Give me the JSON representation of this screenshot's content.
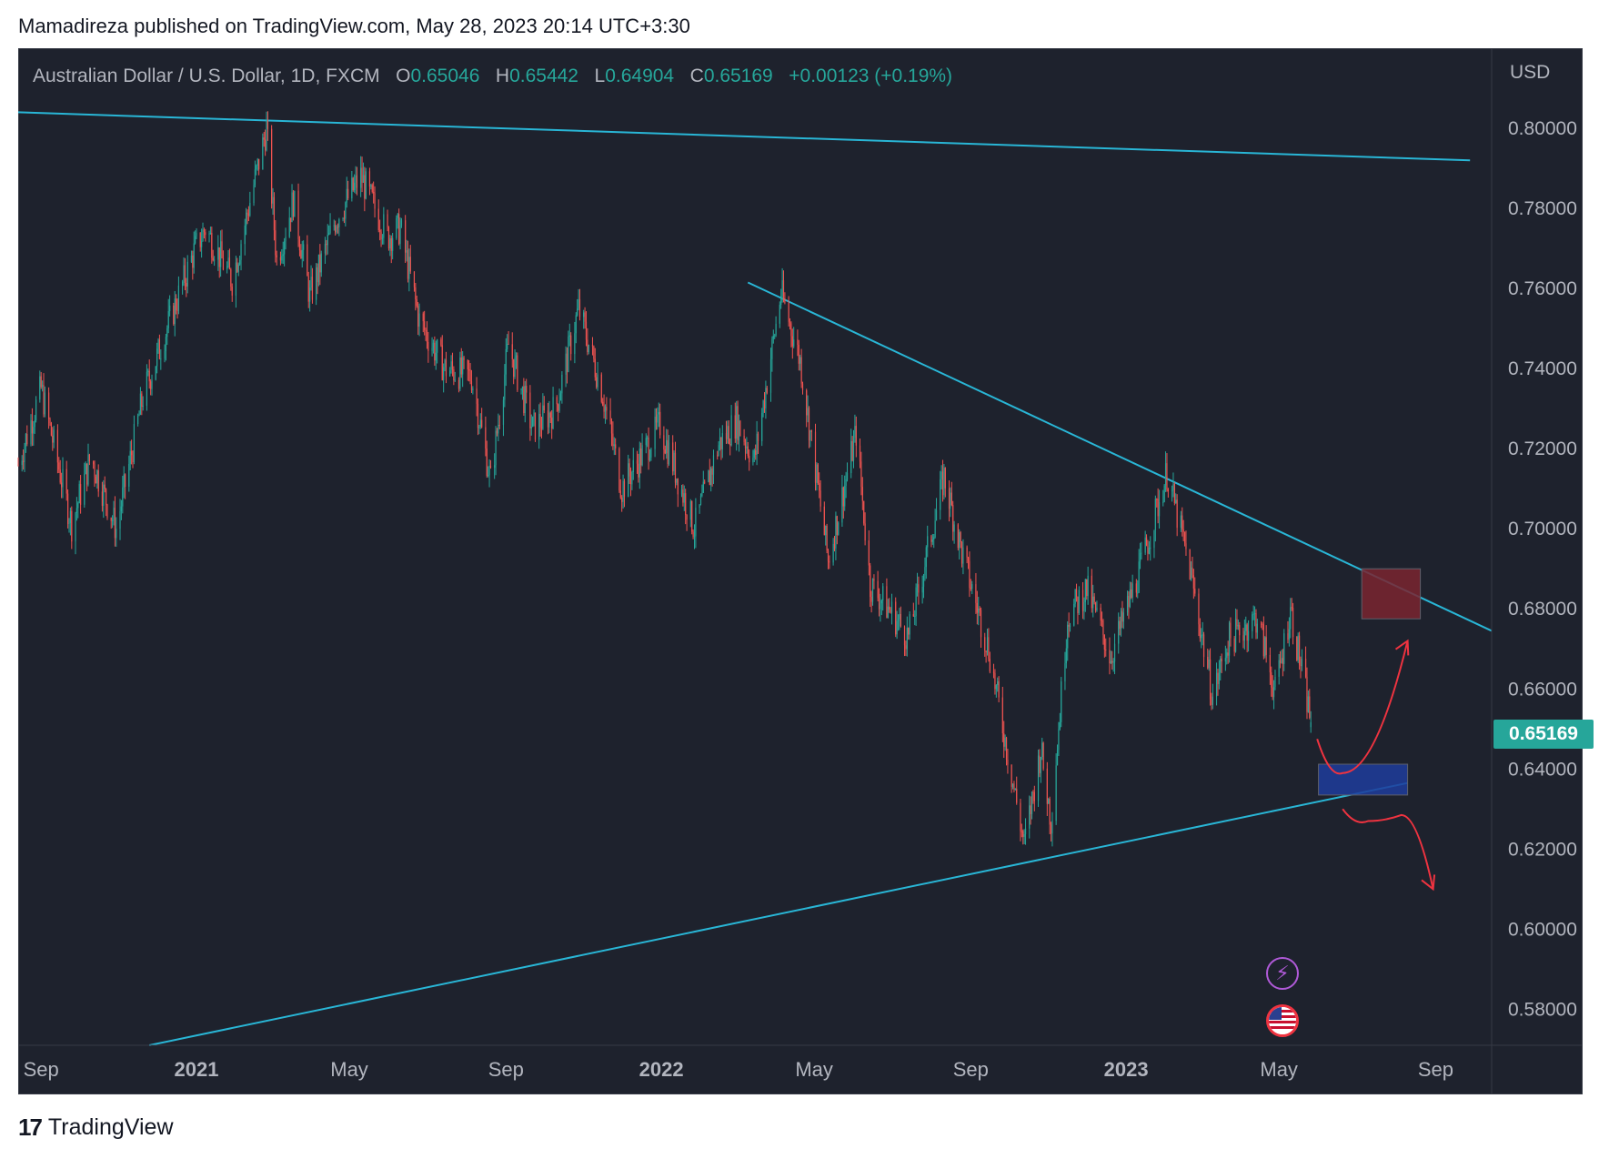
{
  "header": {
    "publisher": "Mamadireza published on TradingView.com, May 28, 2023 20:14 UTC+3:30"
  },
  "legend": {
    "symbol": "Australian Dollar / U.S. Dollar, 1D, FXCM",
    "o_label": "O",
    "o_value": "0.65046",
    "h_label": "H",
    "h_value": "0.65442",
    "l_label": "L",
    "l_value": "0.64904",
    "c_label": "C",
    "c_value": "0.65169",
    "change": "+0.00123 (+0.19%)"
  },
  "axis": {
    "currency": "USD"
  },
  "last_price": "0.65169",
  "footer": {
    "brand": "TradingView",
    "logo_mark": "17"
  },
  "icons": {
    "event_bolt": "lightning-icon",
    "event_flag": "us-flag-icon"
  },
  "colors": {
    "background": "#1e222d",
    "up": "#26a69a",
    "down": "#ef5350",
    "trendline": "#29b6d6",
    "sell_zone": "#7a2430",
    "buy_zone": "#1e3c9c",
    "arrow": "#ef3340"
  },
  "chart_data": {
    "type": "candlestick",
    "symbol": "AUDUSD",
    "timeframe": "1D",
    "x_ticks": [
      "Sep",
      "2021",
      "May",
      "Sep",
      "2022",
      "May",
      "Sep",
      "2023",
      "May",
      "Sep"
    ],
    "y_ticks": [
      "0.80000",
      "0.78000",
      "0.76000",
      "0.74000",
      "0.72000",
      "0.70000",
      "0.68000",
      "0.66000",
      "0.64000",
      "0.62000",
      "0.60000",
      "0.58000"
    ],
    "ylim": [
      0.571,
      0.82
    ],
    "xlim": [
      "2020-08-14",
      "2023-10-15"
    ],
    "path": [
      [
        "2020-08-14",
        0.716
      ],
      [
        "2020-09-01",
        0.735
      ],
      [
        "2020-09-25",
        0.701
      ],
      [
        "2020-10-10",
        0.718
      ],
      [
        "2020-10-30",
        0.7
      ],
      [
        "2020-11-20",
        0.733
      ],
      [
        "2020-12-31",
        0.77
      ],
      [
        "2021-01-08",
        0.775
      ],
      [
        "2021-01-29",
        0.762
      ],
      [
        "2021-02-25",
        0.8
      ],
      [
        "2021-03-05",
        0.767
      ],
      [
        "2021-03-18",
        0.782
      ],
      [
        "2021-03-31",
        0.758
      ],
      [
        "2021-04-20",
        0.777
      ],
      [
        "2021-05-10",
        0.788
      ],
      [
        "2021-05-31",
        0.773
      ],
      [
        "2021-06-10",
        0.775
      ],
      [
        "2021-06-25",
        0.752
      ],
      [
        "2021-07-15",
        0.74
      ],
      [
        "2021-08-05",
        0.738
      ],
      [
        "2021-08-20",
        0.712
      ],
      [
        "2021-09-03",
        0.746
      ],
      [
        "2021-09-22",
        0.725
      ],
      [
        "2021-10-10",
        0.73
      ],
      [
        "2021-10-28",
        0.755
      ],
      [
        "2021-11-15",
        0.735
      ],
      [
        "2021-12-01",
        0.71
      ],
      [
        "2021-12-31",
        0.726
      ],
      [
        "2022-01-27",
        0.7
      ],
      [
        "2022-02-15",
        0.721
      ],
      [
        "2022-03-01",
        0.727
      ],
      [
        "2022-03-15",
        0.717
      ],
      [
        "2022-04-05",
        0.759
      ],
      [
        "2022-04-20",
        0.742
      ],
      [
        "2022-05-12",
        0.692
      ],
      [
        "2022-06-03",
        0.724
      ],
      [
        "2022-06-14",
        0.686
      ],
      [
        "2022-07-01",
        0.679
      ],
      [
        "2022-07-14",
        0.673
      ],
      [
        "2022-08-11",
        0.713
      ],
      [
        "2022-08-25",
        0.694
      ],
      [
        "2022-09-15",
        0.67
      ],
      [
        "2022-10-13",
        0.621
      ],
      [
        "2022-10-26",
        0.645
      ],
      [
        "2022-11-03",
        0.627
      ],
      [
        "2022-11-16",
        0.678
      ],
      [
        "2022-12-01",
        0.685
      ],
      [
        "2022-12-20",
        0.668
      ],
      [
        "2023-01-12",
        0.69
      ],
      [
        "2023-02-02",
        0.714
      ],
      [
        "2023-02-20",
        0.69
      ],
      [
        "2023-03-10",
        0.658
      ],
      [
        "2023-03-22",
        0.672
      ],
      [
        "2023-04-14",
        0.678
      ],
      [
        "2023-04-28",
        0.659
      ],
      [
        "2023-05-10",
        0.68
      ],
      [
        "2023-05-26",
        0.652
      ]
    ],
    "last": {
      "open": 0.65046,
      "high": 0.65442,
      "low": 0.64904,
      "close": 0.65169
    },
    "trendlines": [
      {
        "from": [
          "2020-08-14",
          0.804
        ],
        "to": [
          "2023-09-28",
          0.792
        ]
      },
      {
        "from": [
          "2022-03-10",
          0.7615
        ],
        "to": [
          "2023-10-15",
          0.6745
        ]
      },
      {
        "from": [
          "2020-11-25",
          0.571
        ],
        "to": [
          "2023-08-10",
          0.6365
        ]
      }
    ],
    "zones": [
      {
        "from": "2023-07-05",
        "to": "2023-08-20",
        "top": 0.69,
        "bottom": 0.6775
      },
      {
        "from": "2023-06-01",
        "to": "2023-08-10",
        "top": 0.6412,
        "bottom": 0.6335
      }
    ],
    "projections": [
      {
        "points": [
          [
            "2023-05-31",
            0.6475
          ],
          [
            "2023-06-20",
            0.639
          ],
          [
            "2023-08-10",
            0.672
          ]
        ]
      },
      {
        "points": [
          [
            "2023-06-20",
            0.63
          ],
          [
            "2023-07-10",
            0.627
          ],
          [
            "2023-08-05",
            0.6285
          ],
          [
            "2023-08-30",
            0.61
          ]
        ]
      }
    ]
  }
}
